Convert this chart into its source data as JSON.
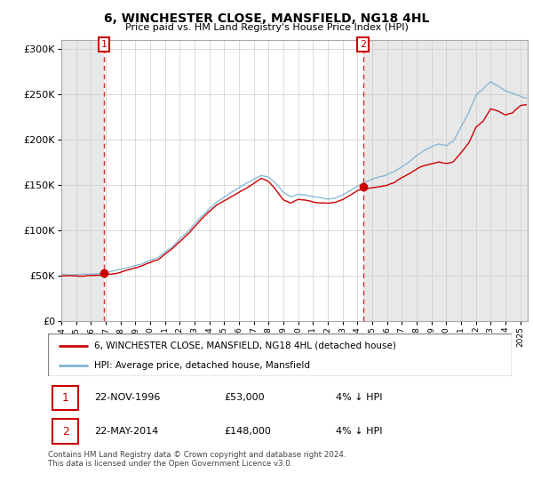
{
  "title": "6, WINCHESTER CLOSE, MANSFIELD, NG18 4HL",
  "subtitle": "Price paid vs. HM Land Registry's House Price Index (HPI)",
  "property_label": "6, WINCHESTER CLOSE, MANSFIELD, NG18 4HL (detached house)",
  "hpi_label": "HPI: Average price, detached house, Mansfield",
  "sale1_date": "22-NOV-1996",
  "sale1_price": 53000,
  "sale1_note": "4% ↓ HPI",
  "sale2_date": "22-MAY-2014",
  "sale2_price": 148000,
  "sale2_note": "4% ↓ HPI",
  "property_color": "#cc0000",
  "hpi_color": "#7fb3d3",
  "annotation_box_color": "#cc0000",
  "footer": "Contains HM Land Registry data © Crown copyright and database right 2024.\nThis data is licensed under the Open Government Licence v3.0.",
  "ylim": [
    0,
    310000
  ],
  "yticks": [
    0,
    50000,
    100000,
    150000,
    200000,
    250000,
    300000
  ],
  "ytick_labels": [
    "£0",
    "£50K",
    "£100K",
    "£150K",
    "£200K",
    "£250K",
    "£300K"
  ],
  "sale1_x": 1996.88,
  "sale2_x": 2014.38,
  "xmin": 1994,
  "xmax": 2025.5
}
